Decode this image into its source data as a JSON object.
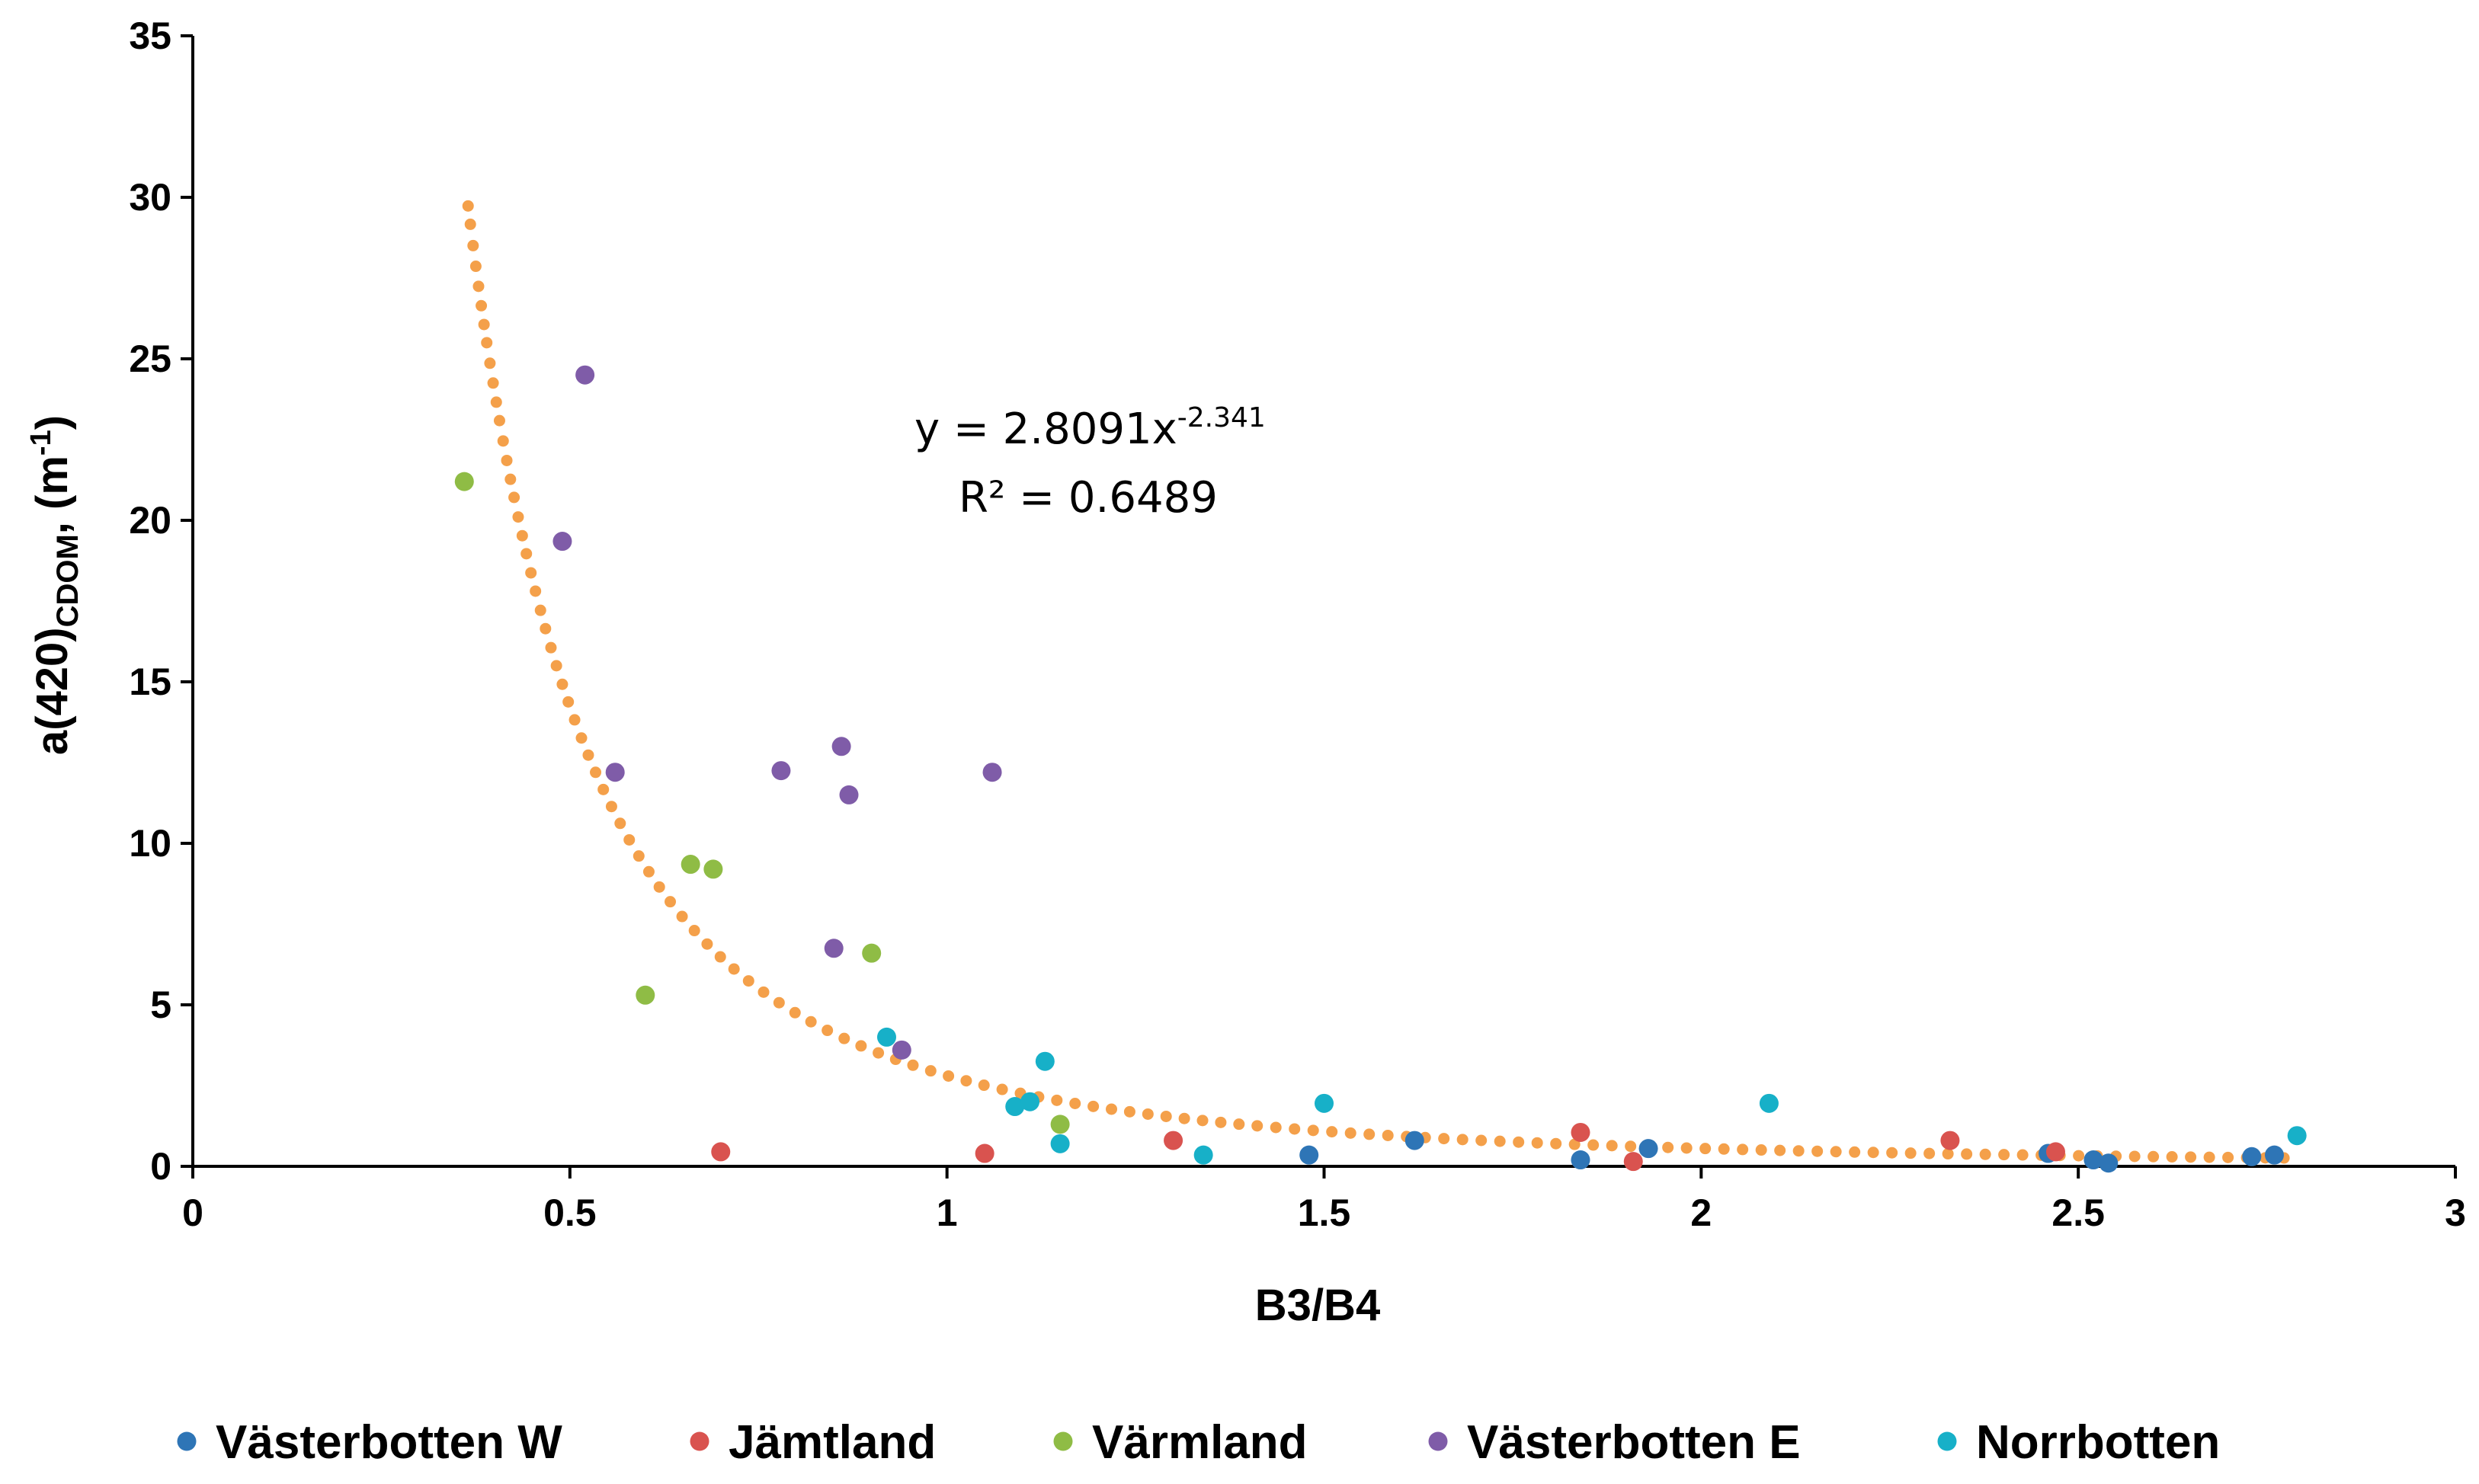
{
  "chart_data": {
    "type": "scatter",
    "title": "",
    "xlabel": "B3/B4",
    "ylabel": {
      "main": "a(420)",
      "sub": "CDOM",
      "after": ", (m",
      "sup": "-1",
      "close": ")"
    },
    "xlim": [
      0,
      3
    ],
    "ylim": [
      0,
      35
    ],
    "xticks": [
      0,
      0.5,
      1,
      1.5,
      2,
      2.5,
      3
    ],
    "xtick_labels": [
      "0",
      "0.5",
      "1",
      "1.5",
      "2",
      "2.5",
      "3"
    ],
    "yticks": [
      0,
      5,
      10,
      15,
      20,
      25,
      30,
      35
    ],
    "ytick_labels": [
      "0",
      "5",
      "10",
      "15",
      "20",
      "25",
      "30",
      "35"
    ],
    "grid": false,
    "legend_position": "bottom",
    "series": [
      {
        "name": "Västerbotten W",
        "color": "#2e75b6",
        "x": [
          1.48,
          1.62,
          1.84,
          1.93,
          2.46,
          2.52,
          2.54,
          2.73,
          2.76
        ],
        "y": [
          0.35,
          0.8,
          0.2,
          0.55,
          0.4,
          0.2,
          0.1,
          0.3,
          0.35
        ]
      },
      {
        "name": "Jämtland",
        "color": "#d9534f",
        "x": [
          0.7,
          1.05,
          1.3,
          1.84,
          1.91,
          2.33,
          2.47
        ],
        "y": [
          0.45,
          0.4,
          0.8,
          1.05,
          0.15,
          0.8,
          0.45
        ]
      },
      {
        "name": "Värmland",
        "color": "#8fbc45",
        "x": [
          0.36,
          0.6,
          0.66,
          0.69,
          0.9,
          1.15
        ],
        "y": [
          21.2,
          5.3,
          9.35,
          9.2,
          6.6,
          1.3
        ]
      },
      {
        "name": "Västerbotten  E",
        "color": "#7f5ca8",
        "x": [
          0.52,
          0.49,
          0.56,
          0.78,
          0.86,
          0.87,
          1.06,
          0.85,
          0.94
        ],
        "y": [
          24.5,
          19.35,
          12.2,
          12.25,
          13.0,
          11.5,
          12.2,
          6.75,
          3.6
        ]
      },
      {
        "name": "Norrbotten",
        "color": "#17b0c8",
        "x": [
          0.92,
          1.09,
          1.11,
          1.13,
          1.15,
          1.34,
          1.5,
          2.09,
          2.79
        ],
        "y": [
          4.0,
          1.85,
          2.0,
          3.25,
          0.7,
          0.35,
          1.95,
          1.95,
          0.95
        ]
      }
    ],
    "trendline": {
      "type": "power",
      "coefficient": 2.8091,
      "exponent": -2.341,
      "x_range": [
        0.365,
        2.78
      ],
      "color": "#f4a04a",
      "style": "dotted"
    },
    "annotation": {
      "equation_prefix": "y = 2.8091x",
      "equation_exponent": "-2.341",
      "r2_text": "R² = 0.6489"
    }
  }
}
